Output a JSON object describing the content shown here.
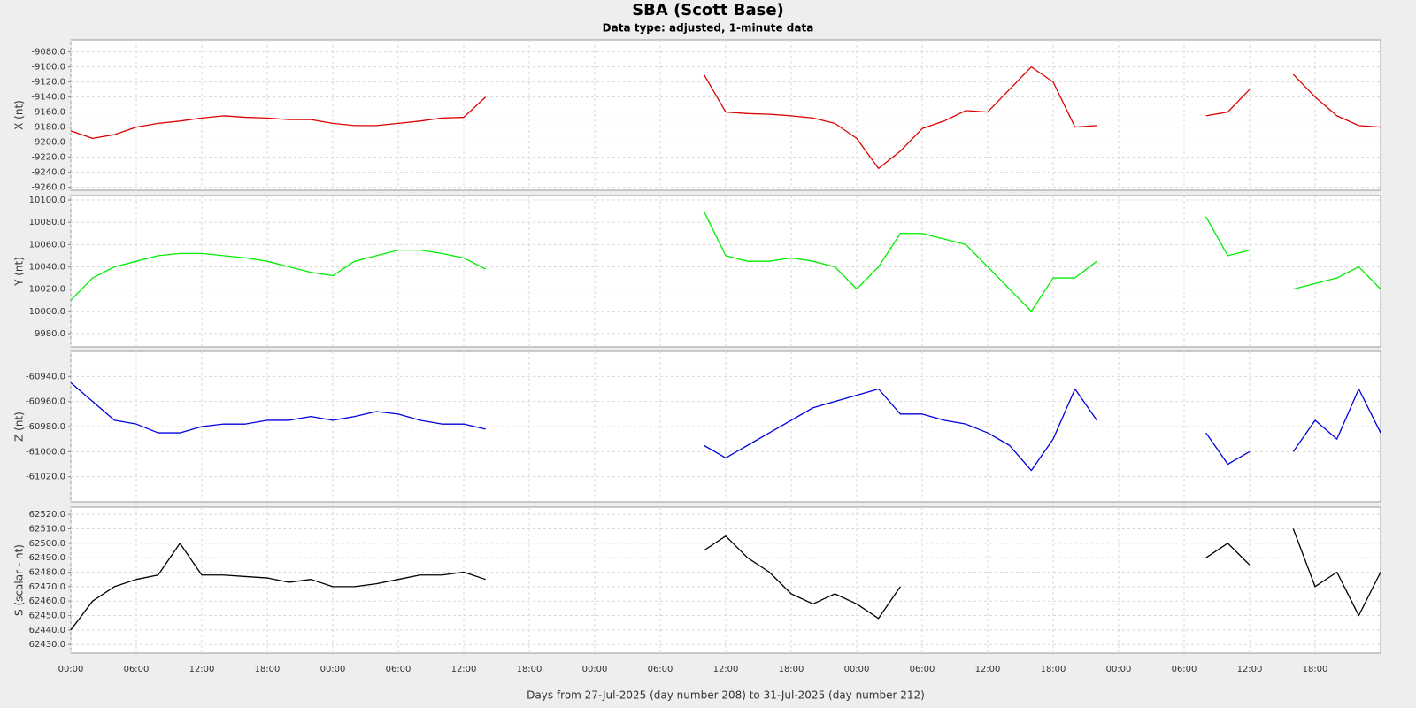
{
  "title": "SBA (Scott Base)",
  "subtitle": "Data type: adjusted, 1-minute data",
  "x_label": "Days from 27-Jul-2025 (day number 208) to 31-Jul-2025 (day number 212)",
  "xlim": [
    0,
    120
  ],
  "xticks": [
    {
      "value": 0,
      "label": "00:00"
    },
    {
      "value": 6,
      "label": "06:00"
    },
    {
      "value": 12,
      "label": "12:00"
    },
    {
      "value": 18,
      "label": "18:00"
    },
    {
      "value": 24,
      "label": "00:00"
    },
    {
      "value": 30,
      "label": "06:00"
    },
    {
      "value": 36,
      "label": "12:00"
    },
    {
      "value": 42,
      "label": "18:00"
    },
    {
      "value": 48,
      "label": "00:00"
    },
    {
      "value": 54,
      "label": "06:00"
    },
    {
      "value": 60,
      "label": "12:00"
    },
    {
      "value": 66,
      "label": "18:00"
    },
    {
      "value": 72,
      "label": "00:00"
    },
    {
      "value": 78,
      "label": "06:00"
    },
    {
      "value": 84,
      "label": "12:00"
    },
    {
      "value": 90,
      "label": "18:00"
    },
    {
      "value": 96,
      "label": "00:00"
    },
    {
      "value": 102,
      "label": "06:00"
    },
    {
      "value": 108,
      "label": "12:00"
    },
    {
      "value": 114,
      "label": "18:00"
    }
  ],
  "x": [
    0,
    2,
    4,
    6,
    8,
    10,
    12,
    14,
    16,
    18,
    20,
    22,
    24,
    26,
    28,
    30,
    32,
    34,
    36,
    38,
    40,
    42,
    44,
    46,
    48,
    50,
    52,
    54,
    56,
    58,
    60,
    62,
    64,
    66,
    68,
    70,
    72,
    74,
    76,
    78,
    80,
    82,
    84,
    86,
    88,
    90,
    92,
    94,
    96,
    98,
    100,
    102,
    104,
    106,
    108,
    110,
    112,
    114,
    116,
    118,
    120
  ],
  "chart_data": [
    {
      "type": "line",
      "y_label": "X (nt)",
      "color": "#dd0000",
      "grid": true,
      "ylim": [
        -9264,
        -9064
      ],
      "yticks": [
        {
          "value": -9260,
          "label": "-9260.0"
        },
        {
          "value": -9240,
          "label": "-9240.0"
        },
        {
          "value": -9220,
          "label": "-9220.0"
        },
        {
          "value": -9200,
          "label": "-9200.0"
        },
        {
          "value": -9180,
          "label": "-9180.0"
        },
        {
          "value": -9160,
          "label": "-9160.0"
        },
        {
          "value": -9140,
          "label": "-9140.0"
        },
        {
          "value": -9120,
          "label": "-9120.0"
        },
        {
          "value": -9100,
          "label": "-9100.0"
        },
        {
          "value": -9080,
          "label": "-9080.0"
        }
      ],
      "values": [
        -9185,
        -9195,
        -9190,
        -9180,
        -9175,
        -9172,
        -9168,
        -9165,
        -9167,
        -9168,
        -9170,
        -9170,
        -9175,
        -9178,
        -9178,
        -9175,
        -9172,
        -9168,
        -9167,
        -9140,
        null,
        null,
        null,
        null,
        null,
        null,
        null,
        null,
        null,
        -9110,
        -9160,
        -9162,
        -9163,
        -9165,
        -9168,
        -9175,
        -9195,
        -9235,
        -9212,
        -9182,
        -9172,
        -9158,
        -9160,
        -9130,
        -9100,
        -9120,
        -9180,
        -9178,
        null,
        null,
        null,
        null,
        -9165,
        -9160,
        -9130,
        null,
        -9110,
        -9140,
        -9165,
        -9178,
        -9180
      ]
    },
    {
      "type": "line",
      "y_label": "Y (nt)",
      "color": "#00ee00",
      "grid": true,
      "ylim": [
        9968,
        10104
      ],
      "yticks": [
        {
          "value": 9980,
          "label": "9980.0"
        },
        {
          "value": 10000,
          "label": "10000.0"
        },
        {
          "value": 10020,
          "label": "10020.0"
        },
        {
          "value": 10040,
          "label": "10040.0"
        },
        {
          "value": 10060,
          "label": "10060.0"
        },
        {
          "value": 10080,
          "label": "10080.0"
        },
        {
          "value": 10100,
          "label": "10100.0"
        }
      ],
      "values": [
        10010,
        10030,
        10040,
        10045,
        10050,
        10052,
        10052,
        10050,
        10048,
        10045,
        10040,
        10035,
        10032,
        10045,
        10050,
        10055,
        10055,
        10052,
        10048,
        10038,
        null,
        null,
        null,
        null,
        null,
        null,
        null,
        null,
        null,
        10090,
        10050,
        10045,
        10045,
        10048,
        10045,
        10040,
        10020,
        10040,
        10070,
        10070,
        10065,
        10060,
        10040,
        10020,
        10000,
        10030,
        10030,
        10045,
        null,
        null,
        null,
        null,
        10085,
        10050,
        10055,
        null,
        10020,
        10025,
        10030,
        10040,
        10020
      ]
    },
    {
      "type": "line",
      "y_label": "Z (nt)",
      "color": "#0000dd",
      "grid": true,
      "ylim": [
        -61040,
        -60920
      ],
      "yticks": [
        {
          "value": -61020,
          "label": "-61020.0"
        },
        {
          "value": -61000,
          "label": "-61000.0"
        },
        {
          "value": -60980,
          "label": "-60980.0"
        },
        {
          "value": -60960,
          "label": "-60960.0"
        },
        {
          "value": -60940,
          "label": "-60940.0"
        }
      ],
      "values": [
        -60945,
        -60960,
        -60975,
        -60978,
        -60985,
        -60985,
        -60980,
        -60978,
        -60978,
        -60975,
        -60975,
        -60972,
        -60975,
        -60972,
        -60968,
        -60970,
        -60975,
        -60978,
        -60978,
        -60982,
        null,
        null,
        null,
        null,
        null,
        null,
        null,
        null,
        null,
        -60995,
        -61005,
        -60995,
        -60985,
        -60975,
        -60965,
        -60960,
        -60955,
        -60950,
        -60970,
        -60970,
        -60975,
        -60978,
        -60985,
        -60995,
        -61015,
        -60990,
        -60950,
        -60975,
        null,
        null,
        null,
        null,
        -60985,
        -61010,
        -61000,
        null,
        -61000,
        -60975,
        -60990,
        -60950,
        -60985
      ]
    },
    {
      "type": "line",
      "y_label": "S (scalar - nt)",
      "color": "#000000",
      "grid": true,
      "ylim": [
        62424,
        62525
      ],
      "yticks": [
        {
          "value": 62430,
          "label": "62430.0"
        },
        {
          "value": 62440,
          "label": "62440.0"
        },
        {
          "value": 62450,
          "label": "62450.0"
        },
        {
          "value": 62460,
          "label": "62460.0"
        },
        {
          "value": 62470,
          "label": "62470.0"
        },
        {
          "value": 62480,
          "label": "62480.0"
        },
        {
          "value": 62490,
          "label": "62490.0"
        },
        {
          "value": 62500,
          "label": "62500.0"
        },
        {
          "value": 62510,
          "label": "62510.0"
        },
        {
          "value": 62520,
          "label": "62520.0"
        }
      ],
      "values": [
        62440,
        62460,
        62470,
        62475,
        62478,
        62500,
        62478,
        62478,
        62477,
        62476,
        62473,
        62475,
        62470,
        62470,
        62472,
        62475,
        62478,
        62478,
        62480,
        62475,
        null,
        null,
        null,
        null,
        null,
        null,
        null,
        null,
        null,
        62495,
        62505,
        62490,
        62480,
        62465,
        62458,
        62465,
        62458,
        62448,
        62470,
        null,
        null,
        null,
        null,
        null,
        null,
        null,
        null,
        62465,
        null,
        null,
        null,
        null,
        62490,
        62500,
        62485,
        null,
        62510,
        62470,
        62480,
        62450,
        62480
      ]
    }
  ]
}
